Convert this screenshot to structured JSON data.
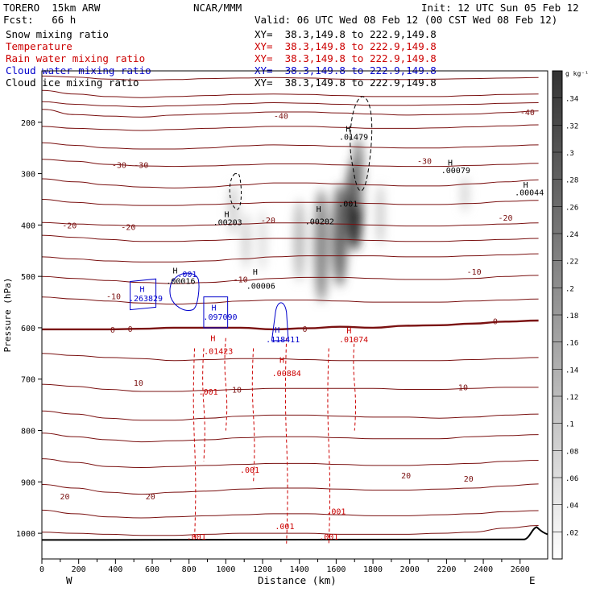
{
  "header": {
    "model": "TORERO  15km ARW",
    "institution": "NCAR/MMM",
    "init": "Init: 12 UTC Sun 05 Feb 12",
    "fcst": "Fcst:   66 h",
    "valid": "Valid: 06 UTC Wed 08 Feb 12 (00 CST Wed 08 Feb 12)"
  },
  "fields": [
    {
      "label": "Snow mixing ratio",
      "xy": "XY=  38.3,149.8 to 222.9,149.8",
      "color": "#000000"
    },
    {
      "label": "Temperature",
      "xy": "XY=  38.3,149.8 to 222.9,149.8",
      "color": "#cc0000"
    },
    {
      "label": "Rain water mixing ratio",
      "xy": "XY=  38.3,149.8 to 222.9,149.8",
      "color": "#cc0000"
    },
    {
      "label": "Cloud water mixing ratio",
      "xy": "XY=  38.3,149.8 to 222.9,149.8",
      "color": "#0000cc"
    },
    {
      "label": "Cloud ice mixing ratio",
      "xy": "XY=  38.3,149.8 to 222.9,149.8",
      "color": "#000000"
    }
  ],
  "chart_data": {
    "type": "cross-section",
    "xlabel": "Distance (km)",
    "ylabel": "Pressure (hPa)",
    "xlim": [
      0,
      2750
    ],
    "ylim": [
      1050,
      100
    ],
    "x_ticks": [
      0,
      100,
      200,
      300,
      400,
      500,
      600,
      700,
      800,
      900,
      1000,
      1100,
      1200,
      1300,
      1400,
      1500,
      1600,
      1700,
      1800,
      1900,
      2000,
      2100,
      2200,
      2300,
      2400,
      2500,
      2600
    ],
    "x_tick_labels": [
      "0",
      "200",
      "400",
      "600",
      "800",
      "1000",
      "1200",
      "1400",
      "1600",
      "1800",
      "2000",
      "2200",
      "2400",
      "2600"
    ],
    "x_tick_label_values": [
      0,
      200,
      400,
      600,
      800,
      1000,
      1200,
      1400,
      1600,
      1800,
      2000,
      2200,
      2400,
      2600
    ],
    "y_tick_values": [
      200,
      300,
      400,
      500,
      600,
      700,
      800,
      900,
      1000
    ],
    "y_tick_labels": [
      "200",
      "300",
      "400",
      "500",
      "600",
      "700",
      "800",
      "900",
      "1000"
    ],
    "end_labels": {
      "left": "W",
      "right": "E"
    },
    "colorbar": {
      "unit": "g kg⁻¹",
      "labels": [
        ".34",
        ".32",
        ".3",
        ".28",
        ".26",
        ".24",
        ".22",
        ".2",
        ".18",
        ".16",
        ".14",
        ".12",
        ".1",
        ".08",
        ".06",
        ".04",
        ".02"
      ],
      "min": 0,
      "max": 0.36,
      "placement": "right"
    },
    "temperature_isotherms": [
      {
        "value": -40,
        "p": [
          175,
          185,
          188,
          190,
          186,
          184,
          182,
          180,
          180,
          182,
          184,
          186,
          185,
          184,
          181,
          178
        ]
      },
      {
        "value": -40,
        "p": [
          138,
          145,
          150,
          152,
          150,
          148,
          146,
          145,
          146,
          148,
          150,
          150,
          150,
          148,
          146,
          145
        ]
      },
      {
        "value": -40,
        "p": [
          110,
          112,
          116,
          118,
          117,
          115,
          114,
          113,
          114,
          116,
          117,
          117,
          116,
          115,
          114,
          113
        ]
      },
      {
        "value": -40,
        "p": [
          160,
          165,
          168,
          170,
          168,
          166,
          164,
          162,
          163,
          165,
          167,
          167,
          166,
          165,
          163,
          162
        ]
      },
      {
        "value": -35,
        "p": [
          208,
          212,
          214,
          216,
          214,
          212,
          210,
          208,
          208,
          210,
          212,
          212,
          211,
          209,
          207,
          205
        ]
      },
      {
        "value": -30,
        "p": [
          240,
          245,
          250,
          252,
          252,
          250,
          246,
          244,
          245,
          247,
          249,
          250,
          250,
          248,
          246,
          244
        ]
      },
      {
        "value": -30,
        "p": [
          272,
          276,
          282,
          285,
          286,
          285,
          283,
          281,
          281,
          283,
          285,
          286,
          286,
          284,
          282,
          280
        ]
      },
      {
        "value": -30,
        "p": [
          310,
          316,
          322,
          326,
          328,
          326,
          322,
          318,
          318,
          320,
          322,
          324,
          324,
          320,
          316,
          312
        ]
      },
      {
        "value": -20,
        "p": [
          350,
          356,
          360,
          362,
          362,
          360,
          358,
          356,
          356,
          356,
          358,
          360,
          360,
          358,
          354,
          352
        ]
      },
      {
        "value": -20,
        "p": [
          395,
          398,
          400,
          402,
          402,
          400,
          398,
          396,
          396,
          398,
          400,
          402,
          402,
          400,
          398,
          396
        ]
      },
      {
        "value": -20,
        "p": [
          420,
          424,
          428,
          432,
          432,
          430,
          428,
          426,
          426,
          428,
          430,
          432,
          432,
          430,
          428,
          426
        ]
      },
      {
        "value": -10,
        "p": [
          462,
          466,
          470,
          472,
          472,
          470,
          466,
          462,
          460,
          460,
          460,
          462,
          462,
          460,
          458,
          456
        ]
      },
      {
        "value": -10,
        "p": [
          500,
          504,
          508,
          512,
          514,
          512,
          508,
          504,
          502,
          502,
          504,
          506,
          506,
          504,
          500,
          498
        ]
      },
      {
        "value": -10,
        "p": [
          540,
          544,
          548,
          552,
          554,
          552,
          548,
          546,
          546,
          548,
          550,
          550,
          550,
          548,
          546,
          544
        ]
      },
      {
        "value": 0,
        "p": [
          603,
          603,
          603,
          602,
          600,
          600,
          600,
          603,
          601,
          598,
          600,
          596,
          595,
          592,
          588,
          586
        ]
      },
      {
        "value": 10,
        "p": [
          650,
          654,
          658,
          660,
          664,
          662,
          660,
          660,
          662,
          664,
          664,
          664,
          664,
          662,
          660,
          658
        ]
      },
      {
        "value": 10,
        "p": [
          710,
          714,
          720,
          724,
          724,
          722,
          720,
          718,
          718,
          718,
          718,
          720,
          720,
          718,
          716,
          716
        ]
      },
      {
        "value": 10,
        "p": [
          762,
          768,
          776,
          780,
          780,
          776,
          772,
          770,
          770,
          772,
          774,
          774,
          776,
          774,
          770,
          768
        ]
      },
      {
        "value": 10,
        "p": [
          805,
          812,
          818,
          822,
          820,
          818,
          814,
          812,
          812,
          814,
          816,
          816,
          816,
          812,
          810,
          808
        ]
      },
      {
        "value": 20,
        "p": [
          855,
          862,
          870,
          872,
          870,
          868,
          866,
          864,
          864,
          866,
          868,
          868,
          866,
          864,
          860,
          858
        ]
      },
      {
        "value": 20,
        "p": [
          905,
          912,
          920,
          924,
          920,
          918,
          914,
          912,
          912,
          914,
          916,
          916,
          914,
          912,
          908,
          904
        ]
      },
      {
        "value": 20,
        "p": [
          955,
          962,
          968,
          970,
          968,
          966,
          964,
          962,
          962,
          964,
          966,
          966,
          964,
          962,
          958,
          956
        ]
      },
      {
        "value": 20,
        "p": [
          998,
          1000,
          1002,
          1004,
          1004,
          1002,
          1000,
          1000,
          1000,
          1002,
          1002,
          1002,
          1000,
          998,
          990,
          985
        ]
      }
    ],
    "isotherm_x": [
      0,
      180,
      360,
      540,
      720,
      900,
      1080,
      1260,
      1440,
      1620,
      1800,
      1980,
      2160,
      2340,
      2520,
      2700
    ],
    "isotherm_labels": [
      {
        "text": "-40",
        "x": 1300,
        "p": 187
      },
      {
        "text": "-40",
        "x": 2640,
        "p": 180
      },
      {
        "text": "-30",
        "x": 420,
        "p": 283
      },
      {
        "text": "-30",
        "x": 540,
        "p": 283
      },
      {
        "text": "-30",
        "x": 2080,
        "p": 275
      },
      {
        "text": "-20",
        "x": 150,
        "p": 400
      },
      {
        "text": "-20",
        "x": 470,
        "p": 403
      },
      {
        "text": "-20",
        "x": 1230,
        "p": 390
      },
      {
        "text": "-20",
        "x": 2520,
        "p": 385
      },
      {
        "text": "-10",
        "x": 390,
        "p": 538
      },
      {
        "text": "-10",
        "x": 1080,
        "p": 505
      },
      {
        "text": "-10",
        "x": 2350,
        "p": 490
      },
      {
        "text": "0",
        "x": 385,
        "p": 603
      },
      {
        "text": "0",
        "x": 480,
        "p": 602
      },
      {
        "text": "0",
        "x": 1430,
        "p": 602
      },
      {
        "text": "0",
        "x": 2465,
        "p": 587
      },
      {
        "text": "10",
        "x": 525,
        "p": 707
      },
      {
        "text": "10",
        "x": 1060,
        "p": 720
      },
      {
        "text": "10",
        "x": 2290,
        "p": 715
      },
      {
        "text": "20",
        "x": 125,
        "p": 928
      },
      {
        "text": "20",
        "x": 590,
        "p": 928
      },
      {
        "text": "20",
        "x": 1980,
        "p": 887
      },
      {
        "text": "20",
        "x": 2320,
        "p": 893
      }
    ],
    "max_labels": [
      {
        "text": "H",
        "x": 1005,
        "p": 378,
        "color": "#000000"
      },
      {
        "text": ".00203",
        "x": 1010,
        "p": 394,
        "color": "#000000"
      },
      {
        "text": "H",
        "x": 1505,
        "p": 368,
        "color": "#000000"
      },
      {
        "text": ".00202",
        "x": 1510,
        "p": 392,
        "color": "#000000"
      },
      {
        "text": "H",
        "x": 1160,
        "p": 490,
        "color": "#000000"
      },
      {
        "text": ".00006",
        "x": 1190,
        "p": 518,
        "color": "#000000"
      },
      {
        "text": "H",
        "x": 1665,
        "p": 212,
        "color": "#000000"
      },
      {
        "text": ".01479",
        "x": 1695,
        "p": 228,
        "color": "#000000"
      },
      {
        "text": ".001",
        "x": 1665,
        "p": 358,
        "color": "#000000"
      },
      {
        "text": "H",
        "x": 2220,
        "p": 278,
        "color": "#000000"
      },
      {
        "text": ".00079",
        "x": 2250,
        "p": 293,
        "color": "#000000"
      },
      {
        "text": "H",
        "x": 2630,
        "p": 321,
        "color": "#000000"
      },
      {
        "text": ".00044",
        "x": 2650,
        "p": 336,
        "color": "#000000"
      },
      {
        "text": "H",
        "x": 725,
        "p": 488,
        "color": "#000000"
      },
      {
        "text": ".00016",
        "x": 755,
        "p": 508,
        "color": "#000000"
      },
      {
        "text": ".001",
        "x": 790,
        "p": 495,
        "color": "#0000cc"
      },
      {
        "text": "H",
        "x": 545,
        "p": 524,
        "color": "#0000cc"
      },
      {
        "text": ".263829",
        "x": 565,
        "p": 542,
        "color": "#0000cc"
      },
      {
        "text": "H",
        "x": 935,
        "p": 560,
        "color": "#0000cc"
      },
      {
        "text": ".097090",
        "x": 970,
        "p": 578,
        "color": "#0000cc"
      },
      {
        "text": "H",
        "x": 1280,
        "p": 603,
        "color": "#0000cc"
      },
      {
        "text": ".118411",
        "x": 1310,
        "p": 622,
        "color": "#0000cc"
      },
      {
        "text": "H",
        "x": 930,
        "p": 620,
        "color": "#cc0000"
      },
      {
        "text": ".01423",
        "x": 960,
        "p": 645,
        "color": "#cc0000"
      },
      {
        "text": "H",
        "x": 1670,
        "p": 605,
        "color": "#cc0000"
      },
      {
        "text": ".01074",
        "x": 1695,
        "p": 622,
        "color": "#cc0000"
      },
      {
        "text": "H",
        "x": 1305,
        "p": 662,
        "color": "#cc0000"
      },
      {
        "text": ".00884",
        "x": 1330,
        "p": 688,
        "color": "#cc0000"
      },
      {
        "text": ".001",
        "x": 905,
        "p": 724,
        "color": "#cc0000"
      },
      {
        "text": ".001",
        "x": 1130,
        "p": 876,
        "color": "#cc0000"
      },
      {
        "text": ".001",
        "x": 1600,
        "p": 957,
        "color": "#cc0000"
      },
      {
        "text": ".001",
        "x": 1320,
        "p": 986,
        "color": "#cc0000"
      },
      {
        "text": ".001",
        "x": 840,
        "p": 1006,
        "color": "#cc0000"
      },
      {
        "text": ".001",
        "x": 1560,
        "p": 1006,
        "color": "#cc0000"
      }
    ],
    "snow_blobs": [
      {
        "x": 1040,
        "p": 370,
        "rx": 28,
        "rp": 50,
        "v": 0.08
      },
      {
        "x": 1110,
        "p": 430,
        "rx": 18,
        "rp": 55,
        "v": 0.1
      },
      {
        "x": 1200,
        "p": 430,
        "rx": 22,
        "rp": 60,
        "v": 0.06
      },
      {
        "x": 1400,
        "p": 430,
        "rx": 30,
        "rp": 80,
        "v": 0.12
      },
      {
        "x": 1520,
        "p": 440,
        "rx": 40,
        "rp": 110,
        "v": 0.2
      },
      {
        "x": 1620,
        "p": 420,
        "rx": 40,
        "rp": 100,
        "v": 0.26
      },
      {
        "x": 1700,
        "p": 360,
        "rx": 45,
        "rp": 90,
        "v": 0.36
      },
      {
        "x": 1720,
        "p": 300,
        "rx": 30,
        "rp": 70,
        "v": 0.22
      },
      {
        "x": 1840,
        "p": 380,
        "rx": 20,
        "rp": 60,
        "v": 0.1
      },
      {
        "x": 2300,
        "p": 340,
        "rx": 20,
        "rp": 35,
        "v": 0.08
      }
    ]
  }
}
